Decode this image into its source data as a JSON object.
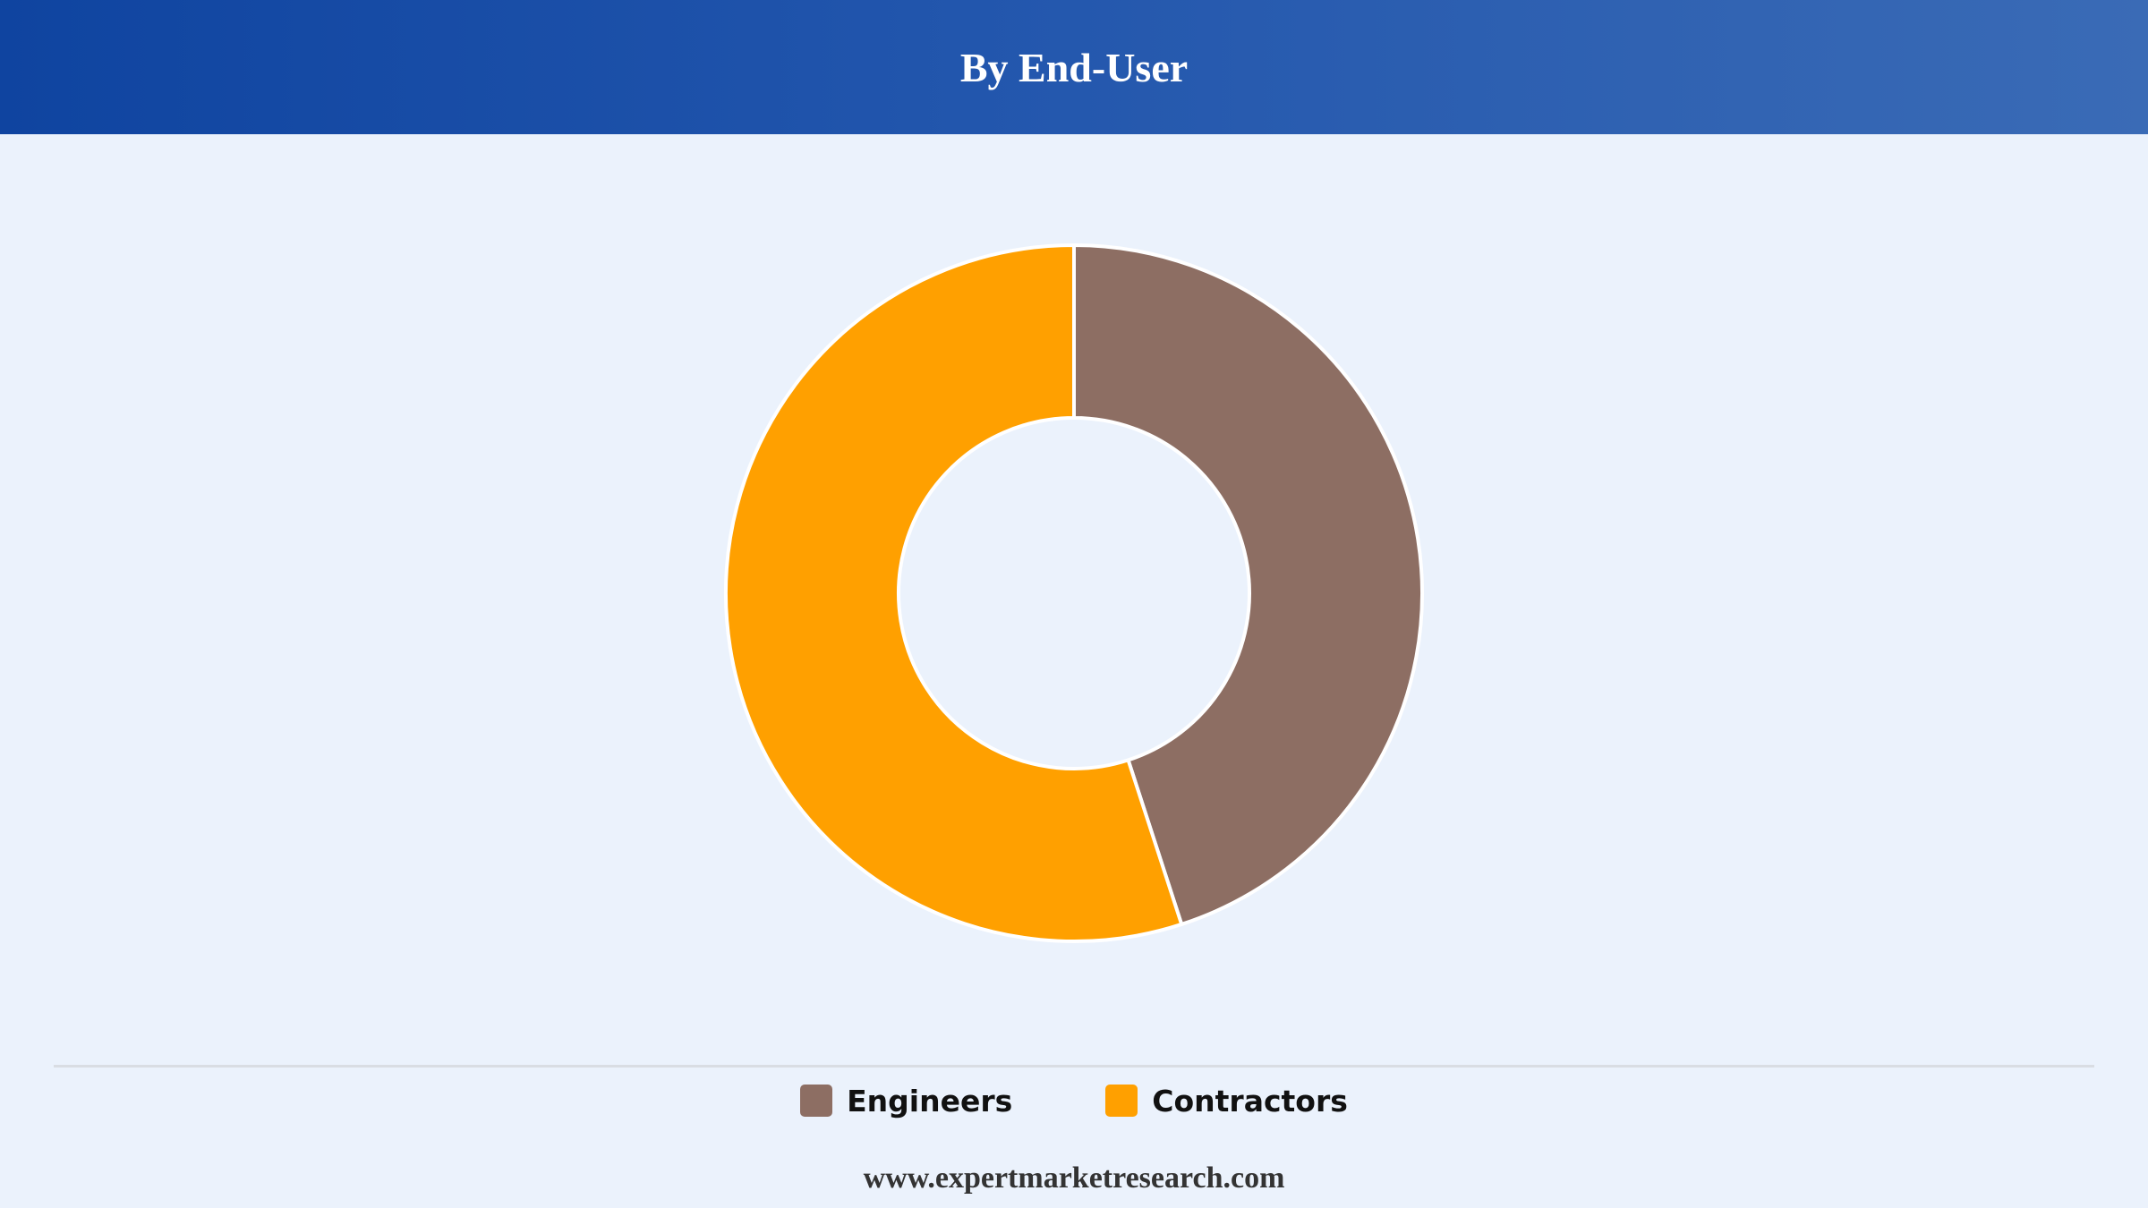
{
  "header": {
    "title": "By End-User"
  },
  "chart_data": {
    "type": "pie",
    "variant": "donut",
    "title": "By End-User",
    "categories": [
      "Engineers",
      "Contractors"
    ],
    "values": [
      45,
      55
    ],
    "unit": "%",
    "colors": [
      "#8d6e63",
      "#ffa000"
    ],
    "legend_placement": "bottom",
    "start_angle": "top, clockwise"
  },
  "legend": {
    "items": [
      {
        "label": "Engineers",
        "color": "#8d6e63"
      },
      {
        "label": "Contractors",
        "color": "#ffa000"
      }
    ]
  },
  "footer": {
    "website": "www.expertmarketresearch.com"
  }
}
